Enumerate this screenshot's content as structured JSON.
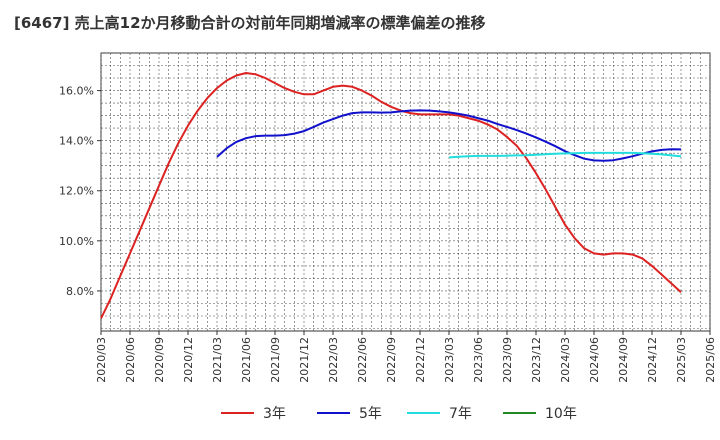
{
  "title": "[6467]  売上高12か月移動合計の対前年同期増減率の標準偏差の推移",
  "chart_data": {
    "type": "line",
    "title": "[6467]  売上高12か月移動合計の対前年同期増減率の標準偏差の推移",
    "xlabel": "",
    "ylabel": "",
    "x_ticks": [
      "2020/03",
      "2020/06",
      "2020/09",
      "2020/12",
      "2021/03",
      "2021/06",
      "2021/09",
      "2021/12",
      "2022/03",
      "2022/06",
      "2022/09",
      "2022/12",
      "2023/03",
      "2023/06",
      "2023/09",
      "2023/12",
      "2024/03",
      "2024/06",
      "2024/09",
      "2024/12",
      "2025/03",
      "2025/06"
    ],
    "y_ticks": [
      8.0,
      10.0,
      12.0,
      14.0,
      16.0
    ],
    "y_tick_labels": [
      "8.0%",
      "10.0%",
      "12.0%",
      "14.0%",
      "16.0%"
    ],
    "ylim": [
      6.4,
      17.5
    ],
    "grid": true,
    "legend_position": "bottom",
    "series": [
      {
        "name": "3年",
        "color": "#dd2222",
        "x": [
          "2020/03",
          "2020/04",
          "2020/05",
          "2020/06",
          "2020/07",
          "2020/08",
          "2020/09",
          "2020/10",
          "2020/11",
          "2020/12",
          "2021/01",
          "2021/02",
          "2021/03",
          "2021/04",
          "2021/05",
          "2021/06",
          "2021/07",
          "2021/08",
          "2021/09",
          "2021/10",
          "2021/11",
          "2021/12",
          "2022/01",
          "2022/02",
          "2022/03",
          "2022/04",
          "2022/05",
          "2022/06",
          "2022/07",
          "2022/08",
          "2022/09",
          "2022/10",
          "2022/11",
          "2022/12",
          "2023/01",
          "2023/02",
          "2023/03",
          "2023/04",
          "2023/05",
          "2023/06",
          "2023/07",
          "2023/08",
          "2023/09",
          "2023/10",
          "2023/11",
          "2023/12",
          "2024/01",
          "2024/02",
          "2024/03",
          "2024/04",
          "2024/05",
          "2024/06",
          "2024/07",
          "2024/08",
          "2024/09",
          "2024/10",
          "2024/11",
          "2024/12",
          "2025/01",
          "2025/02",
          "2025/03"
        ],
        "values": [
          6.9,
          7.7,
          8.6,
          9.5,
          10.4,
          11.3,
          12.2,
          13.1,
          13.9,
          14.6,
          15.2,
          15.7,
          16.1,
          16.4,
          16.6,
          16.7,
          16.65,
          16.5,
          16.3,
          16.1,
          15.95,
          15.85,
          15.85,
          16.0,
          16.15,
          16.2,
          16.15,
          16.0,
          15.8,
          15.55,
          15.35,
          15.2,
          15.1,
          15.05,
          15.05,
          15.05,
          15.05,
          15.0,
          14.9,
          14.8,
          14.65,
          14.45,
          14.15,
          13.8,
          13.3,
          12.7,
          12.05,
          11.35,
          10.65,
          10.1,
          9.7,
          9.5,
          9.45,
          9.5,
          9.5,
          9.45,
          9.3,
          9.0,
          8.65,
          8.3,
          7.95
        ]
      },
      {
        "name": "5年",
        "color": "#1111cc",
        "x": [
          "2021/03",
          "2021/04",
          "2021/05",
          "2021/06",
          "2021/07",
          "2021/08",
          "2021/09",
          "2021/10",
          "2021/11",
          "2021/12",
          "2022/01",
          "2022/02",
          "2022/03",
          "2022/04",
          "2022/05",
          "2022/06",
          "2022/07",
          "2022/08",
          "2022/09",
          "2022/10",
          "2022/11",
          "2022/12",
          "2023/01",
          "2023/02",
          "2023/03",
          "2023/04",
          "2023/05",
          "2023/06",
          "2023/07",
          "2023/08",
          "2023/09",
          "2023/10",
          "2023/11",
          "2023/12",
          "2024/01",
          "2024/02",
          "2024/03",
          "2024/04",
          "2024/05",
          "2024/06",
          "2024/07",
          "2024/08",
          "2024/09",
          "2024/10",
          "2024/11",
          "2024/12",
          "2025/01",
          "2025/02",
          "2025/03"
        ],
        "values": [
          13.35,
          13.7,
          13.95,
          14.1,
          14.18,
          14.2,
          14.2,
          14.22,
          14.28,
          14.38,
          14.55,
          14.72,
          14.86,
          15.0,
          15.1,
          15.13,
          15.13,
          15.12,
          15.13,
          15.17,
          15.2,
          15.21,
          15.2,
          15.17,
          15.13,
          15.07,
          15.0,
          14.9,
          14.8,
          14.67,
          14.55,
          14.42,
          14.28,
          14.13,
          13.96,
          13.78,
          13.58,
          13.42,
          13.28,
          13.21,
          13.2,
          13.22,
          13.29,
          13.38,
          13.48,
          13.57,
          13.63,
          13.66,
          13.65
        ]
      },
      {
        "name": "7年",
        "color": "#22dddd",
        "x": [
          "2023/03",
          "2023/04",
          "2023/05",
          "2023/06",
          "2023/07",
          "2023/08",
          "2023/09",
          "2023/10",
          "2023/11",
          "2023/12",
          "2024/01",
          "2024/02",
          "2024/03",
          "2024/04",
          "2024/05",
          "2024/06",
          "2024/07",
          "2024/08",
          "2024/09",
          "2024/10",
          "2024/11",
          "2024/12",
          "2025/01",
          "2025/02",
          "2025/03"
        ],
        "values": [
          13.33,
          13.36,
          13.38,
          13.39,
          13.39,
          13.39,
          13.4,
          13.41,
          13.42,
          13.44,
          13.46,
          13.48,
          13.49,
          13.5,
          13.51,
          13.51,
          13.51,
          13.51,
          13.51,
          13.51,
          13.5,
          13.48,
          13.45,
          13.41,
          13.37
        ]
      },
      {
        "name": "10年",
        "color": "#228822",
        "x": [],
        "values": []
      }
    ]
  }
}
